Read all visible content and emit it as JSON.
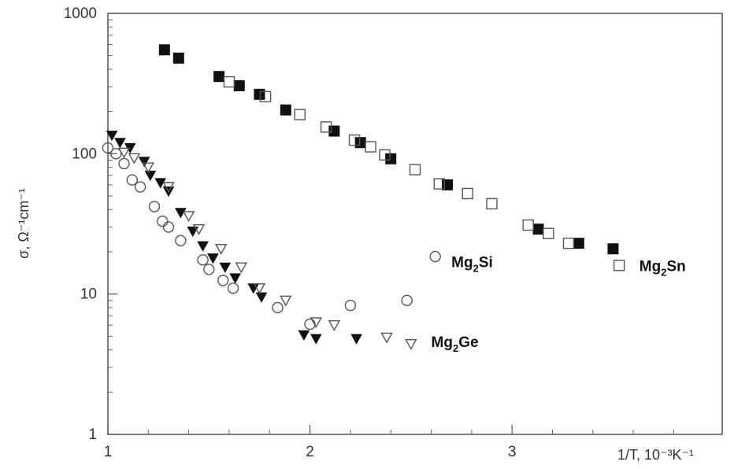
{
  "chart_data": {
    "type": "scatter",
    "title": "",
    "xlabel": "1/T, 10⁻³K⁻¹",
    "ylabel": "σ, Ω⁻¹cm⁻¹",
    "xlim": [
      1,
      4.04
    ],
    "ylim": [
      1,
      1000
    ],
    "yscale": "log",
    "grid": false,
    "legend": "none (series labelled inline)",
    "x_ticks": [
      {
        "value": 1,
        "label": "1"
      },
      {
        "value": 2,
        "label": "2"
      },
      {
        "value": 3,
        "label": "3"
      }
    ],
    "y_ticks": [
      {
        "value": 1,
        "label": "1"
      },
      {
        "value": 10,
        "label": "10"
      },
      {
        "value": 100,
        "label": "100"
      },
      {
        "value": 1000,
        "label": "1000"
      }
    ],
    "series": [
      {
        "name": "Mg2Sn",
        "marker": "square-filled",
        "points": [
          [
            1.28,
            550
          ],
          [
            1.35,
            480
          ],
          [
            1.55,
            355
          ],
          [
            1.65,
            305
          ],
          [
            1.75,
            265
          ],
          [
            1.88,
            205
          ],
          [
            2.12,
            145
          ],
          [
            2.25,
            120
          ],
          [
            2.4,
            92
          ],
          [
            2.68,
            60
          ],
          [
            3.13,
            29
          ],
          [
            3.33,
            23
          ],
          [
            3.5,
            21
          ]
        ]
      },
      {
        "name": "Mg2Sn",
        "marker": "square-open",
        "points": [
          [
            1.6,
            325
          ],
          [
            1.78,
            255
          ],
          [
            1.95,
            190
          ],
          [
            2.08,
            155
          ],
          [
            2.22,
            125
          ],
          [
            2.3,
            112
          ],
          [
            2.37,
            98
          ],
          [
            2.52,
            77
          ],
          [
            2.64,
            61
          ],
          [
            2.78,
            52
          ],
          [
            2.9,
            44
          ],
          [
            3.08,
            31
          ],
          [
            3.18,
            27
          ],
          [
            3.28,
            23
          ],
          [
            3.53,
            16
          ]
        ]
      },
      {
        "name": "Mg2Ge",
        "marker": "triangle-down-filled",
        "points": [
          [
            1.02,
            135
          ],
          [
            1.06,
            120
          ],
          [
            1.11,
            110
          ],
          [
            1.18,
            88
          ],
          [
            1.21,
            70
          ],
          [
            1.26,
            62
          ],
          [
            1.3,
            54
          ],
          [
            1.36,
            38
          ],
          [
            1.42,
            28
          ],
          [
            1.47,
            22
          ],
          [
            1.52,
            18
          ],
          [
            1.58,
            15.5
          ],
          [
            1.63,
            13
          ],
          [
            1.72,
            11
          ],
          [
            1.76,
            9.5
          ],
          [
            1.97,
            5.1
          ],
          [
            2.03,
            4.8
          ],
          [
            2.23,
            4.8
          ]
        ]
      },
      {
        "name": "Mg2Ge",
        "marker": "triangle-down-open",
        "points": [
          [
            1.08,
            102
          ],
          [
            1.13,
            93
          ],
          [
            1.2,
            80
          ],
          [
            1.3,
            58
          ],
          [
            1.4,
            36
          ],
          [
            1.45,
            29
          ],
          [
            1.56,
            21
          ],
          [
            1.66,
            15.5
          ],
          [
            1.75,
            11
          ],
          [
            1.88,
            9
          ],
          [
            2.03,
            6.3
          ],
          [
            2.12,
            6
          ],
          [
            2.38,
            4.9
          ],
          [
            2.5,
            4.4
          ]
        ]
      },
      {
        "name": "Mg2Si",
        "marker": "circle-open",
        "points": [
          [
            1.0,
            110
          ],
          [
            1.04,
            100
          ],
          [
            1.08,
            85
          ],
          [
            1.12,
            65
          ],
          [
            1.16,
            58
          ],
          [
            1.23,
            42
          ],
          [
            1.27,
            33
          ],
          [
            1.3,
            30
          ],
          [
            1.36,
            24
          ],
          [
            1.47,
            17.5
          ],
          [
            1.5,
            15
          ],
          [
            1.57,
            12.5
          ],
          [
            1.62,
            11
          ],
          [
            1.84,
            8
          ],
          [
            2.0,
            6.1
          ],
          [
            2.2,
            8.3
          ],
          [
            2.48,
            9
          ],
          [
            2.62,
            18.5
          ]
        ]
      }
    ],
    "annotations": [
      {
        "text": "Mg₂Si",
        "x": 2.7,
        "y": 17
      },
      {
        "text": "Mg₂Sn",
        "x": 3.63,
        "y": 16
      },
      {
        "text": "Mg₂Ge",
        "x": 2.6,
        "y": 4.6
      }
    ]
  }
}
